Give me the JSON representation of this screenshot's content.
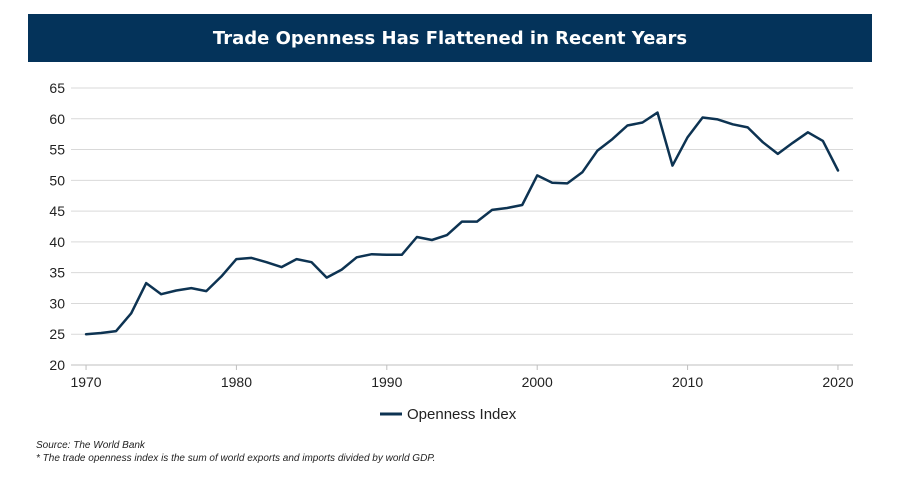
{
  "colors": {
    "title_bg": "#04335a",
    "line": "#0d3352",
    "grid": "#d9d9d9",
    "axis": "#bfbfbf",
    "text": "#222222"
  },
  "chart_data": {
    "type": "line",
    "title": "Trade Openness Has Flattened in Recent Years",
    "xlabel": "",
    "ylabel": "",
    "xlim": [
      1969,
      2021
    ],
    "ylim": [
      20,
      65
    ],
    "x_ticks": [
      1970,
      1980,
      1990,
      2000,
      2010,
      2020
    ],
    "y_ticks": [
      20,
      25,
      30,
      35,
      40,
      45,
      50,
      55,
      60,
      65
    ],
    "grid": "horizontal",
    "legend_position": "bottom-center",
    "x": [
      1970,
      1971,
      1972,
      1973,
      1974,
      1975,
      1976,
      1977,
      1978,
      1979,
      1980,
      1981,
      1982,
      1983,
      1984,
      1985,
      1986,
      1987,
      1988,
      1989,
      1990,
      1991,
      1992,
      1993,
      1994,
      1995,
      1996,
      1997,
      1998,
      1999,
      2000,
      2001,
      2002,
      2003,
      2004,
      2005,
      2006,
      2007,
      2008,
      2009,
      2010,
      2011,
      2012,
      2013,
      2014,
      2015,
      2016,
      2017,
      2018,
      2019,
      2020
    ],
    "series": [
      {
        "name": "Openness Index",
        "values": [
          25.0,
          25.2,
          25.5,
          28.4,
          33.3,
          31.5,
          32.1,
          32.5,
          32.0,
          34.4,
          37.2,
          37.4,
          36.7,
          35.9,
          37.2,
          36.7,
          34.2,
          35.5,
          37.5,
          38.0,
          37.9,
          37.9,
          40.8,
          40.3,
          41.1,
          43.3,
          43.3,
          45.2,
          45.5,
          46.0,
          50.8,
          49.6,
          49.5,
          51.3,
          54.8,
          56.7,
          58.9,
          59.4,
          61.0,
          52.4,
          57.0,
          60.2,
          59.9,
          59.1,
          58.6,
          56.2,
          54.3,
          56.1,
          57.8,
          56.4,
          51.6
        ]
      }
    ]
  },
  "footnotes": {
    "source": "Source: The World Bank",
    "note": "* The trade openness index is the sum of world exports and imports divided by world GDP."
  }
}
